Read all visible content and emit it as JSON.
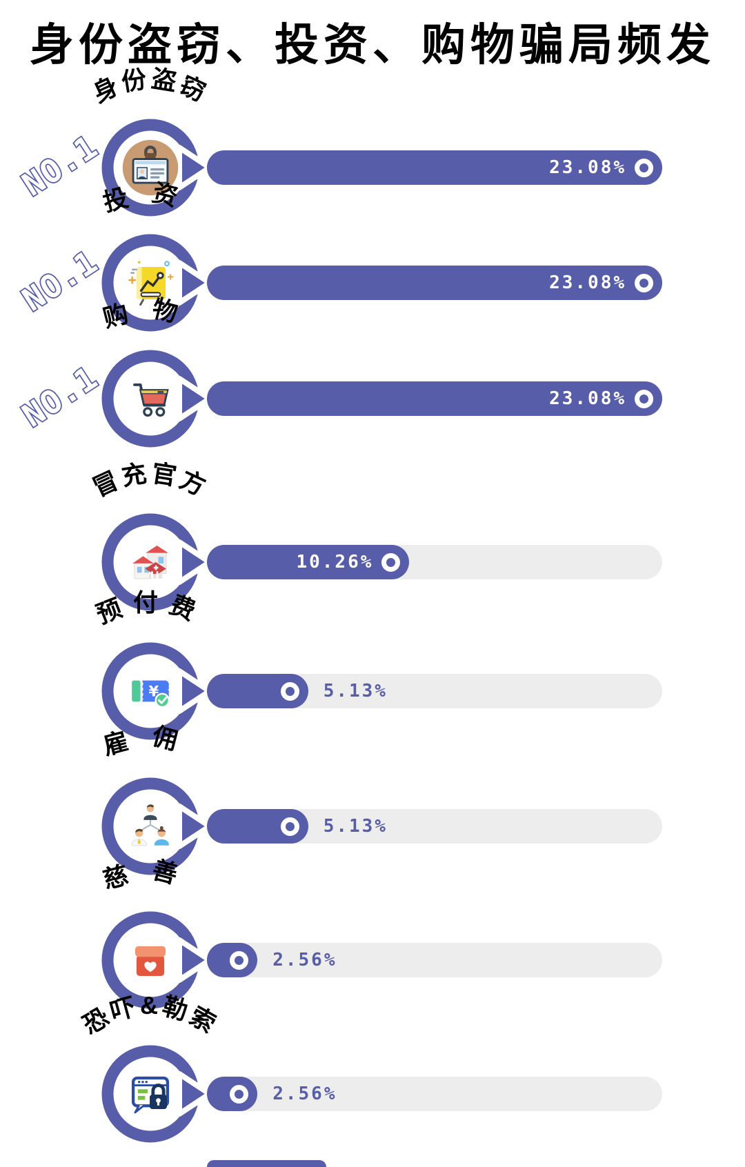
{
  "title": "身份盗窃、投资、购物骗局频发",
  "colors": {
    "accent": "#575da9",
    "track": "#ededed",
    "badge_fill": "#ffffff",
    "badge_outline": "#575da9",
    "title_color": "#000000",
    "value_inside_color": "#ffffff",
    "value_outside_color": "#575da9",
    "id_card_circle_bg": "#c89b72"
  },
  "chart_data": {
    "type": "bar",
    "orientation": "horizontal",
    "title": "身份盗窃、投资、购物骗局频发",
    "max_value_pct": 23.08,
    "categories": [
      "身份盗窃",
      "投资",
      "购物",
      "冒充官方",
      "预付费",
      "雇佣",
      "慈善",
      "恐吓&勒索"
    ],
    "values": [
      23.08,
      23.08,
      23.08,
      10.26,
      5.13,
      5.13,
      2.56,
      2.56
    ],
    "value_labels": [
      "23.08%",
      "23.08%",
      "23.08%",
      "10.26%",
      "5.13%",
      "5.13%",
      "2.56%",
      "2.56%"
    ],
    "badges": [
      "NO.1",
      "NO.1",
      "NO.1",
      "",
      "",
      "",
      "",
      ""
    ],
    "icons": [
      "id-card-icon",
      "investment-chart-icon",
      "shopping-cart-icon",
      "official-buildings-icon",
      "prepaid-ticket-icon",
      "employment-orgchart-icon",
      "charity-gift-icon",
      "browser-lock-icon"
    ],
    "legend": null,
    "grid": false
  }
}
